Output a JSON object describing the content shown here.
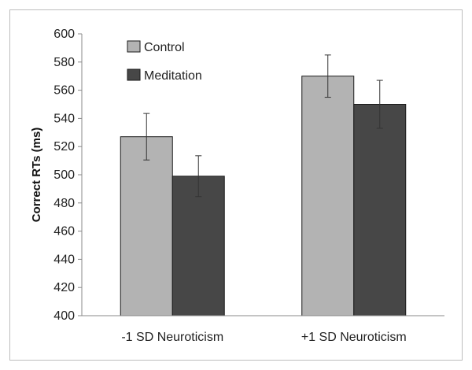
{
  "chart_data": {
    "type": "bar",
    "title": "",
    "xlabel": "",
    "ylabel": "Correct RTs (ms)",
    "ylim": [
      400,
      600
    ],
    "yticks": [
      400,
      420,
      440,
      460,
      480,
      500,
      520,
      540,
      560,
      580,
      600
    ],
    "grid": false,
    "legend_position": "top-left",
    "categories": [
      "-1 SD Neuroticism",
      "+1 SD Neuroticism"
    ],
    "series": [
      {
        "name": "Control",
        "color": "#b3b3b3",
        "values": [
          527,
          570
        ],
        "errors": [
          16.5,
          15
        ]
      },
      {
        "name": "Meditation",
        "color": "#474747",
        "values": [
          499,
          550
        ],
        "errors": [
          14.5,
          17
        ]
      }
    ]
  }
}
